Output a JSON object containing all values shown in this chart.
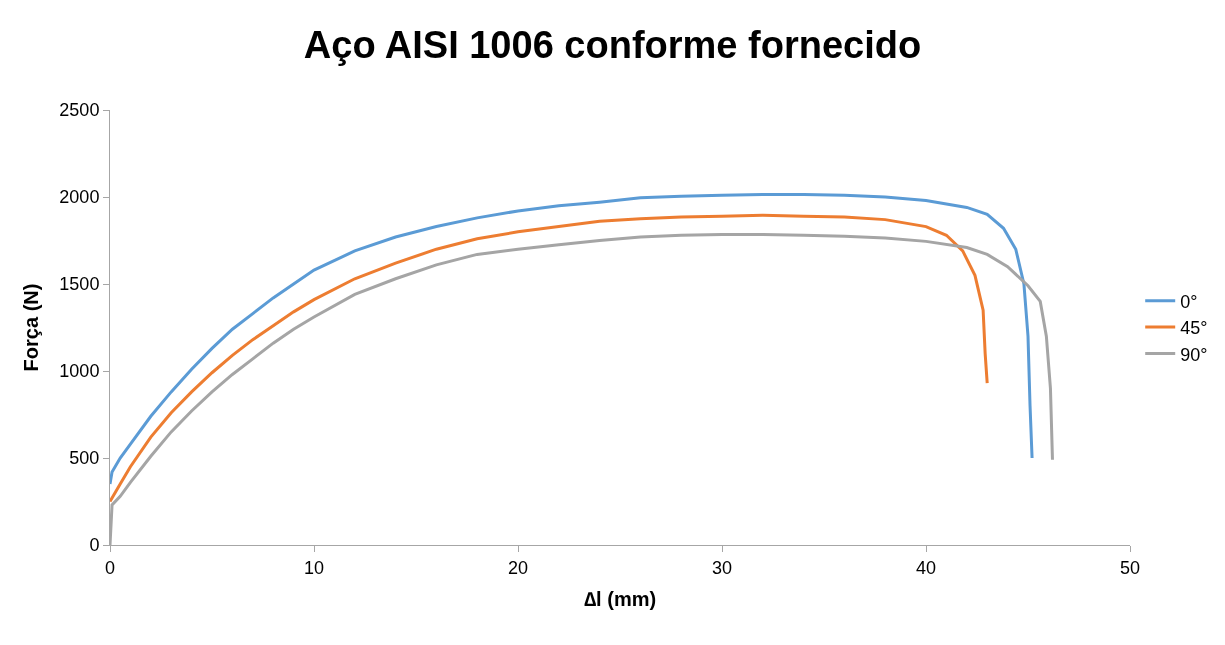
{
  "chart_data": {
    "type": "line",
    "title": "Aço AISI 1006 conforme fornecido",
    "xlabel": "∆l (mm)",
    "ylabel": "Força (N)",
    "xlim": [
      0,
      50
    ],
    "xticks": [
      0,
      10,
      20,
      30,
      40,
      50
    ],
    "ylim": [
      0,
      2500
    ],
    "yticks": [
      0,
      500,
      1000,
      1500,
      2000,
      2500
    ],
    "legend": "right",
    "marker": "none",
    "line_style": "solid",
    "series": [
      {
        "name": "0°",
        "color": "#5b9bd5",
        "x": [
          0,
          0.1,
          0.5,
          1,
          2,
          3,
          4,
          5,
          6,
          7,
          8,
          9,
          10,
          12,
          14,
          16,
          18,
          20,
          22,
          24,
          26,
          28,
          30,
          32,
          34,
          36,
          38,
          40,
          42,
          43,
          43.8,
          44.4,
          44.8,
          45,
          45.1,
          45.2
        ],
        "values": [
          350,
          420,
          500,
          580,
          740,
          880,
          1010,
          1130,
          1240,
          1330,
          1420,
          1500,
          1580,
          1690,
          1770,
          1830,
          1880,
          1920,
          1950,
          1970,
          1995,
          2005,
          2010,
          2015,
          2015,
          2010,
          2000,
          1980,
          1940,
          1900,
          1820,
          1700,
          1500,
          1200,
          800,
          500
        ]
      },
      {
        "name": "45°",
        "color": "#ed7d31",
        "x": [
          0,
          0.5,
          1,
          2,
          3,
          4,
          5,
          6,
          7,
          8,
          9,
          10,
          12,
          14,
          16,
          18,
          20,
          22,
          24,
          26,
          28,
          30,
          32,
          34,
          36,
          38,
          40,
          41,
          41.8,
          42.4,
          42.8,
          42.9,
          43
        ],
        "values": [
          250,
          350,
          450,
          620,
          760,
          880,
          990,
          1090,
          1180,
          1260,
          1340,
          1410,
          1530,
          1620,
          1700,
          1760,
          1800,
          1830,
          1860,
          1875,
          1885,
          1890,
          1895,
          1890,
          1885,
          1870,
          1830,
          1780,
          1690,
          1550,
          1350,
          1100,
          930
        ]
      },
      {
        "name": "90°",
        "color": "#a5a5a5",
        "x": [
          0,
          0.1,
          0.5,
          1,
          2,
          3,
          4,
          5,
          6,
          7,
          8,
          9,
          10,
          12,
          14,
          16,
          18,
          20,
          22,
          24,
          26,
          28,
          30,
          32,
          34,
          36,
          38,
          40,
          42,
          43,
          44,
          45,
          45.6,
          45.9,
          46.1,
          46.2
        ],
        "values": [
          0,
          230,
          280,
          360,
          510,
          650,
          770,
          880,
          980,
          1070,
          1160,
          1240,
          1310,
          1440,
          1530,
          1610,
          1670,
          1700,
          1725,
          1750,
          1770,
          1780,
          1785,
          1785,
          1780,
          1775,
          1765,
          1745,
          1710,
          1670,
          1600,
          1490,
          1400,
          1200,
          900,
          490
        ]
      }
    ]
  }
}
